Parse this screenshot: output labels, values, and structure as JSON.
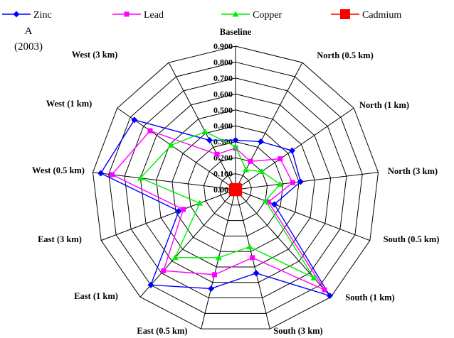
{
  "chart_data": {
    "type": "radar",
    "panel_label": "A",
    "panel_year": "(2003)",
    "categories": [
      "Baseline",
      "North (0.5 km)",
      "North (1 km)",
      "North (3 km)",
      "South (0.5 km)",
      "South (1 km)",
      "South (3 km)",
      "East (0.5 km)",
      "East (1 km)",
      "East (3 km)",
      "West (0.5 km)",
      "West (1 km)",
      "West (3 km)"
    ],
    "ticks": [
      "0.000",
      "0.100",
      "0.200",
      "0.300",
      "0.400",
      "0.500",
      "0.600",
      "0.700",
      "0.800",
      "0.900"
    ],
    "rmax": 0.9,
    "grid": true,
    "legend_position": "top",
    "series": [
      {
        "name": "Zinc",
        "color": "#0000ff",
        "marker": "diamond",
        "values": [
          0.31,
          0.34,
          0.43,
          0.41,
          0.26,
          0.89,
          0.54,
          0.64,
          0.8,
          0.38,
          0.85,
          0.77,
          0.35
        ]
      },
      {
        "name": "Lead",
        "color": "#ff00ff",
        "marker": "square",
        "values": [
          0.26,
          0.2,
          0.34,
          0.36,
          0.22,
          0.84,
          0.44,
          0.55,
          0.68,
          0.35,
          0.78,
          0.65,
          0.25
        ]
      },
      {
        "name": "Copper",
        "color": "#00ee00",
        "marker": "triangle",
        "values": [
          0.27,
          0.14,
          0.2,
          0.28,
          0.2,
          0.74,
          0.37,
          0.44,
          0.57,
          0.24,
          0.6,
          0.49,
          0.41
        ]
      },
      {
        "name": "Cadmium",
        "color": "#ff0000",
        "marker": "bigsquare",
        "values": [
          0.01,
          0.01,
          0.01,
          0.01,
          0.01,
          0.01,
          0.01,
          0.01,
          0.01,
          0.01,
          0.01,
          0.01,
          0.01
        ]
      }
    ]
  }
}
